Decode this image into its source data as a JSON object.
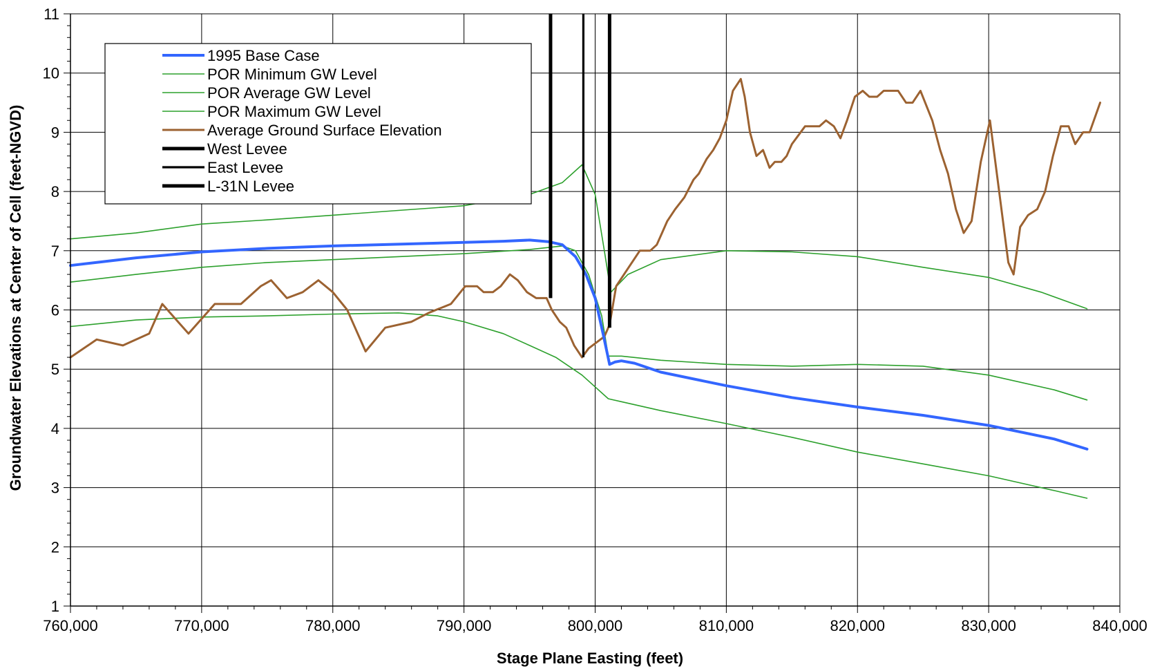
{
  "chart_data": {
    "type": "line",
    "title": "",
    "xlabel": "Stage Plane Easting (feet)",
    "ylabel": "Groundwater Elevations at Center of Cell (feet-NGVD)",
    "xlim": [
      760000,
      840000
    ],
    "ylim": [
      1,
      11
    ],
    "x_ticks": [
      760000,
      770000,
      780000,
      790000,
      800000,
      810000,
      820000,
      830000,
      840000
    ],
    "x_tick_labels": [
      "760,000",
      "770,000",
      "780,000",
      "790,000",
      "800,000",
      "810,000",
      "820,000",
      "830,000",
      "840,000"
    ],
    "y_ticks": [
      1,
      2,
      3,
      4,
      5,
      6,
      7,
      8,
      9,
      10,
      11
    ],
    "y_tick_labels": [
      "1",
      "2",
      "3",
      "4",
      "5",
      "6",
      "7",
      "8",
      "9",
      "10",
      "11"
    ],
    "grid": true,
    "legend_position": "top-left",
    "series": [
      {
        "name": "1995 Base Case",
        "color": "#3366ff",
        "width": 4,
        "points": [
          [
            760000,
            6.75
          ],
          [
            765000,
            6.88
          ],
          [
            770000,
            6.98
          ],
          [
            775000,
            7.04
          ],
          [
            780000,
            7.08
          ],
          [
            785000,
            7.11
          ],
          [
            790000,
            7.14
          ],
          [
            793000,
            7.16
          ],
          [
            795000,
            7.18
          ],
          [
            796500,
            7.15
          ],
          [
            797500,
            7.1
          ],
          [
            798500,
            6.9
          ],
          [
            799300,
            6.6
          ],
          [
            800000,
            6.2
          ],
          [
            800600,
            5.6
          ],
          [
            801100,
            5.08
          ],
          [
            801500,
            5.12
          ],
          [
            802000,
            5.14
          ],
          [
            803000,
            5.1
          ],
          [
            805000,
            4.95
          ],
          [
            810000,
            4.72
          ],
          [
            815000,
            4.52
          ],
          [
            820000,
            4.36
          ],
          [
            825000,
            4.22
          ],
          [
            830000,
            4.05
          ],
          [
            835000,
            3.82
          ],
          [
            837500,
            3.65
          ]
        ]
      },
      {
        "name": "POR Minimum GW Level",
        "color": "#2ca02c",
        "width": 1.6,
        "points": [
          [
            760000,
            5.72
          ],
          [
            765000,
            5.83
          ],
          [
            770000,
            5.88
          ],
          [
            775000,
            5.9
          ],
          [
            780000,
            5.93
          ],
          [
            785000,
            5.95
          ],
          [
            788000,
            5.9
          ],
          [
            790000,
            5.8
          ],
          [
            793000,
            5.6
          ],
          [
            795000,
            5.4
          ],
          [
            797000,
            5.2
          ],
          [
            799000,
            4.9
          ],
          [
            801000,
            4.5
          ],
          [
            802000,
            4.45
          ],
          [
            805000,
            4.3
          ],
          [
            810000,
            4.08
          ],
          [
            815000,
            3.85
          ],
          [
            820000,
            3.6
          ],
          [
            825000,
            3.4
          ],
          [
            830000,
            3.2
          ],
          [
            835000,
            2.95
          ],
          [
            837500,
            2.82
          ]
        ]
      },
      {
        "name": "POR Average GW Level",
        "color": "#2ca02c",
        "width": 1.6,
        "points": [
          [
            760000,
            6.47
          ],
          [
            765000,
            6.6
          ],
          [
            770000,
            6.72
          ],
          [
            775000,
            6.8
          ],
          [
            780000,
            6.85
          ],
          [
            785000,
            6.9
          ],
          [
            790000,
            6.95
          ],
          [
            795000,
            7.02
          ],
          [
            797500,
            7.08
          ],
          [
            798500,
            7.0
          ],
          [
            799500,
            6.6
          ],
          [
            800500,
            5.9
          ],
          [
            801000,
            5.22
          ],
          [
            802000,
            5.22
          ],
          [
            805000,
            5.15
          ],
          [
            810000,
            5.08
          ],
          [
            815000,
            5.05
          ],
          [
            820000,
            5.08
          ],
          [
            825000,
            5.05
          ],
          [
            830000,
            4.9
          ],
          [
            835000,
            4.65
          ],
          [
            837500,
            4.48
          ]
        ]
      },
      {
        "name": "POR Maximum GW Level",
        "color": "#2ca02c",
        "width": 1.6,
        "points": [
          [
            760000,
            7.2
          ],
          [
            765000,
            7.3
          ],
          [
            770000,
            7.45
          ],
          [
            775000,
            7.52
          ],
          [
            780000,
            7.6
          ],
          [
            785000,
            7.68
          ],
          [
            790000,
            7.76
          ],
          [
            793000,
            7.88
          ],
          [
            795000,
            7.95
          ],
          [
            797500,
            8.15
          ],
          [
            799000,
            8.45
          ],
          [
            800000,
            7.95
          ],
          [
            800700,
            7.0
          ],
          [
            801200,
            6.3
          ],
          [
            802500,
            6.6
          ],
          [
            805000,
            6.85
          ],
          [
            810000,
            7.0
          ],
          [
            815000,
            6.98
          ],
          [
            820000,
            6.9
          ],
          [
            825000,
            6.72
          ],
          [
            830000,
            6.55
          ],
          [
            834000,
            6.3
          ],
          [
            837500,
            6.02
          ]
        ]
      },
      {
        "name": "Average Ground Surface Elevation",
        "color": "#9c6231",
        "width": 3,
        "points": [
          [
            760000,
            5.2
          ],
          [
            762000,
            5.5
          ],
          [
            764000,
            5.4
          ],
          [
            766000,
            5.6
          ],
          [
            767000,
            6.1
          ],
          [
            769000,
            5.6
          ],
          [
            771000,
            6.1
          ],
          [
            773000,
            6.1
          ],
          [
            774500,
            6.4
          ],
          [
            775300,
            6.5
          ],
          [
            776500,
            6.2
          ],
          [
            777700,
            6.3
          ],
          [
            778900,
            6.5
          ],
          [
            780000,
            6.3
          ],
          [
            781100,
            6.0
          ],
          [
            782500,
            5.3
          ],
          [
            784000,
            5.7
          ],
          [
            786000,
            5.8
          ],
          [
            787300,
            5.95
          ],
          [
            789000,
            6.1
          ],
          [
            790100,
            6.4
          ],
          [
            791000,
            6.4
          ],
          [
            791500,
            6.3
          ],
          [
            792200,
            6.3
          ],
          [
            792800,
            6.4
          ],
          [
            793500,
            6.6
          ],
          [
            794100,
            6.5
          ],
          [
            794800,
            6.3
          ],
          [
            795500,
            6.2
          ],
          [
            796300,
            6.2
          ],
          [
            796700,
            6.0
          ],
          [
            797300,
            5.8
          ],
          [
            797800,
            5.7
          ],
          [
            798400,
            5.4
          ],
          [
            799000,
            5.2
          ],
          [
            799500,
            5.35
          ],
          [
            800100,
            5.45
          ],
          [
            800700,
            5.55
          ],
          [
            801100,
            5.75
          ],
          [
            801600,
            6.4
          ],
          [
            802200,
            6.6
          ],
          [
            802800,
            6.8
          ],
          [
            803400,
            7.0
          ],
          [
            804200,
            7.0
          ],
          [
            804700,
            7.1
          ],
          [
            805100,
            7.3
          ],
          [
            805500,
            7.5
          ],
          [
            806100,
            7.7
          ],
          [
            806800,
            7.9
          ],
          [
            807500,
            8.2
          ],
          [
            807900,
            8.3
          ],
          [
            808500,
            8.55
          ],
          [
            809000,
            8.7
          ],
          [
            809500,
            8.9
          ],
          [
            810000,
            9.2
          ],
          [
            810500,
            9.7
          ],
          [
            811100,
            9.9
          ],
          [
            811400,
            9.6
          ],
          [
            811800,
            9.0
          ],
          [
            812300,
            8.6
          ],
          [
            812800,
            8.7
          ],
          [
            813300,
            8.4
          ],
          [
            813700,
            8.5
          ],
          [
            814200,
            8.5
          ],
          [
            814600,
            8.6
          ],
          [
            815000,
            8.8
          ],
          [
            815500,
            8.95
          ],
          [
            816000,
            9.1
          ],
          [
            816500,
            9.1
          ],
          [
            817100,
            9.1
          ],
          [
            817600,
            9.2
          ],
          [
            818200,
            9.1
          ],
          [
            818700,
            8.9
          ],
          [
            819200,
            9.2
          ],
          [
            819800,
            9.6
          ],
          [
            820400,
            9.7
          ],
          [
            820900,
            9.6
          ],
          [
            821500,
            9.6
          ],
          [
            822000,
            9.7
          ],
          [
            822600,
            9.7
          ],
          [
            823100,
            9.7
          ],
          [
            823700,
            9.5
          ],
          [
            824200,
            9.5
          ],
          [
            824800,
            9.7
          ],
          [
            825700,
            9.2
          ],
          [
            826300,
            8.7
          ],
          [
            826900,
            8.3
          ],
          [
            827500,
            7.7
          ],
          [
            828100,
            7.3
          ],
          [
            828700,
            7.5
          ],
          [
            829400,
            8.5
          ],
          [
            830100,
            9.2
          ],
          [
            830800,
            8.0
          ],
          [
            831500,
            6.8
          ],
          [
            831900,
            6.6
          ],
          [
            832400,
            7.4
          ],
          [
            833000,
            7.6
          ],
          [
            833700,
            7.7
          ],
          [
            834300,
            8.0
          ],
          [
            834900,
            8.6
          ],
          [
            835500,
            9.1
          ],
          [
            836100,
            9.1
          ],
          [
            836600,
            8.8
          ],
          [
            837200,
            9.0
          ],
          [
            837700,
            9.0
          ],
          [
            838500,
            9.5
          ]
        ]
      }
    ],
    "levees": [
      {
        "name": "West Levee",
        "color": "#000000",
        "width": 5,
        "x": 796600,
        "y_bottom": 6.2,
        "y_top": 11
      },
      {
        "name": "East Levee",
        "color": "#000000",
        "width": 3.2,
        "x": 799100,
        "y_bottom": 5.2,
        "y_top": 11
      },
      {
        "name": "L-31N Levee",
        "color": "#000000",
        "width": 5,
        "x": 801100,
        "y_bottom": 5.7,
        "y_top": 11
      }
    ]
  }
}
